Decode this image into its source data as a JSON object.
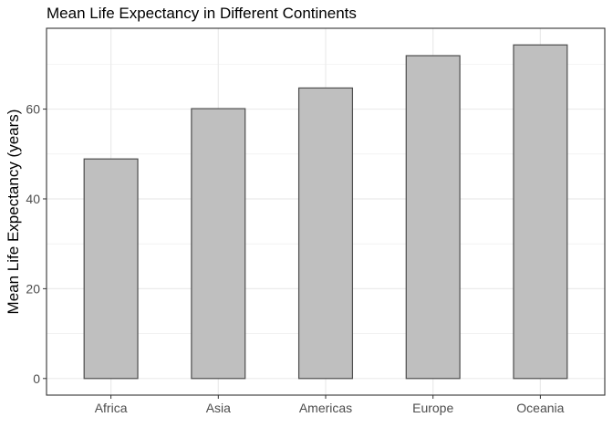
{
  "chart_data": {
    "type": "bar",
    "title": "Mean Life Expectancy in Different Continents",
    "xlabel": "",
    "ylabel": "Mean Life Expectancy (years)",
    "categories": [
      "Africa",
      "Asia",
      "Americas",
      "Europe",
      "Oceania"
    ],
    "values": [
      48.9,
      60.1,
      64.7,
      71.9,
      74.3
    ],
    "ylim": [
      -3.7,
      78.0
    ],
    "yticks": [
      0,
      20,
      40,
      60
    ],
    "grid": true,
    "bar_fill": "#bfbfbf",
    "bar_stroke": "#4d4d4d",
    "grid_color": "#ebebeb",
    "panel_border": "#333333",
    "tick_label_color": "#4d4d4d"
  }
}
